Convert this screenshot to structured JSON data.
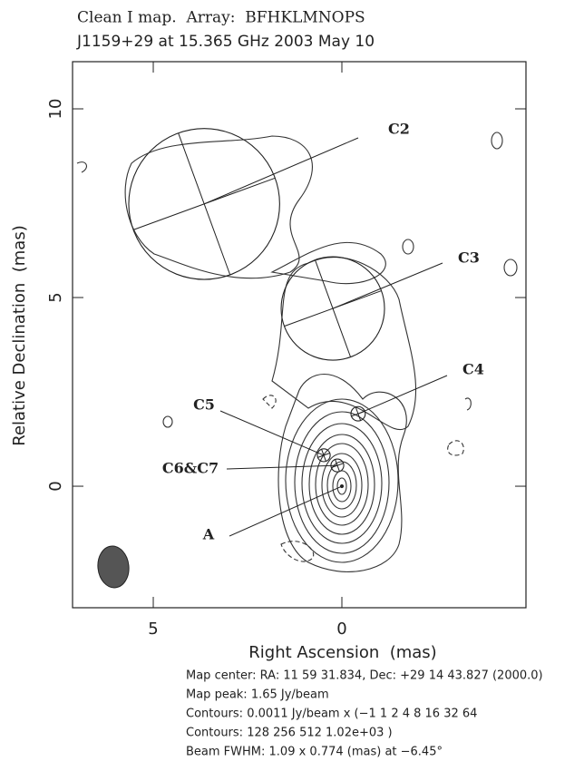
{
  "chart_data": {
    "type": "contour",
    "title": "Clean I map.  Array:  BFHKLMNOPS",
    "subtitle": "J1159+29 at 15.365 GHz 2003 May 10",
    "xlabel": "Right Ascension  (mas)",
    "ylabel": "Relative Declination  (mas)",
    "xlim": [
      7.14,
      -4.88
    ],
    "ylim": [
      -3.22,
      11.25
    ],
    "xticks": [
      5,
      0
    ],
    "yticks": [
      0,
      5,
      10
    ],
    "components": [
      {
        "name": "C2",
        "x": 3.65,
        "y": 7.48,
        "size": 4.0
      },
      {
        "name": "C3",
        "x": 0.24,
        "y": 4.71,
        "size": 2.74
      },
      {
        "name": "C4",
        "x": -0.43,
        "y": 1.92,
        "size": 0.38
      },
      {
        "name": "C5",
        "x": 0.48,
        "y": 0.82,
        "size": 0.34
      },
      {
        "name": "C6&C7",
        "x": 0.12,
        "y": 0.55,
        "size": 0.34
      },
      {
        "name": "A",
        "x": 0,
        "y": 0,
        "size": 0.1
      }
    ],
    "notes": [
      "Map center:  RA: 11 59 31.834,  Dec: +29 14 43.827 (2000.0)",
      "Map peak: 1.65 Jy/beam",
      "Contours: 0.0011 Jy/beam x (−1 1 2 4 8 16 32 64",
      "Contours: 128 256 512 1.02e+03 )",
      "Beam FWHM: 1.09 x 0.774 (mas) at −6.45°"
    ]
  }
}
